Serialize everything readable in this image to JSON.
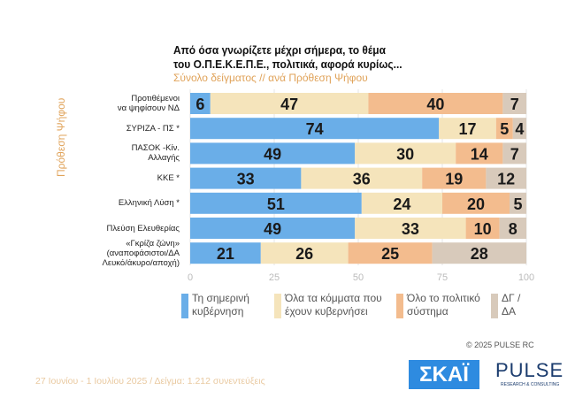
{
  "chart_data": {
    "type": "bar",
    "stacked": true,
    "orientation": "horizontal",
    "title": "Από όσα γνωρίζετε μέχρι σήμερα, το θέμα του Ο.Π.Ε.Κ.Ε.Π.Ε., πολιτικά, αφορά κυρίως...",
    "title_lines": [
      "Από όσα γνωρίζετε μέχρι σήμερα, το θέμα",
      "του  Ο.Π.Ε.Κ.Ε.Π.Ε.,  πολιτικά, αφορά κυρίως..."
    ],
    "subtitle": "Σύνολο δείγματος // ανά Πρόθεση Ψήφου",
    "ylabel": "Πρόθεση Ψήφου",
    "categories": [
      [
        "Προτιθέμενοι",
        "να ψηφίσουν ΝΔ"
      ],
      [
        "ΣΥΡΙΖΑ - ΠΣ *"
      ],
      [
        "ΠΑΣΟΚ -Κίν.",
        "Αλλαγής"
      ],
      [
        "ΚΚΕ *"
      ],
      [
        "Ελληνική Λύση *"
      ],
      [
        "Πλεύση Ελευθερίας"
      ],
      [
        "«Γκρίζα ζώνη»",
        "(αναποφάσιστοι/ΔΑ",
        "Λευκό/άκυρο/αποχή)"
      ]
    ],
    "series": [
      {
        "name": "Τη σημερινή κυβέρνηση",
        "color": "#6aaee8",
        "values": [
          6,
          74,
          49,
          33,
          51,
          49,
          21
        ]
      },
      {
        "name": "Όλα τα κόμματα που έχουν κυβερνήσει",
        "color": "#f5e4bb",
        "values": [
          47,
          17,
          30,
          36,
          24,
          33,
          26
        ]
      },
      {
        "name": "Όλο το πολιτικό σύστημα",
        "color": "#f3bc8e",
        "values": [
          40,
          5,
          14,
          19,
          20,
          10,
          25
        ]
      },
      {
        "name": "ΔΓ / ΔΑ",
        "color": "#d8cabb",
        "values": [
          7,
          4,
          7,
          12,
          5,
          8,
          28
        ]
      }
    ],
    "legend_lines": [
      [
        "Τη σημερινή",
        "κυβέρνηση"
      ],
      [
        "Όλα τα κόμματα που",
        "έχουν κυβερνήσει"
      ],
      [
        "Όλο το πολιτικό",
        "σύστημα"
      ],
      [
        "ΔΓ /",
        "ΔΑ"
      ]
    ],
    "xticks": [
      0,
      25,
      50,
      75,
      100
    ],
    "xlim": [
      0,
      100
    ],
    "legend_position": "bottom",
    "grid": true
  },
  "copyright": "© 2025  PULSE RC",
  "footer": "27 Ιουνίου - 1 Ιουλίου 2025  /  Δείγμα:  1.212 συνεντεύξεις",
  "logos": {
    "skai": "ΣΚΑΪ",
    "pulse": "PULSE",
    "pulse_sub": "RESEARCH & CONSULTING"
  }
}
